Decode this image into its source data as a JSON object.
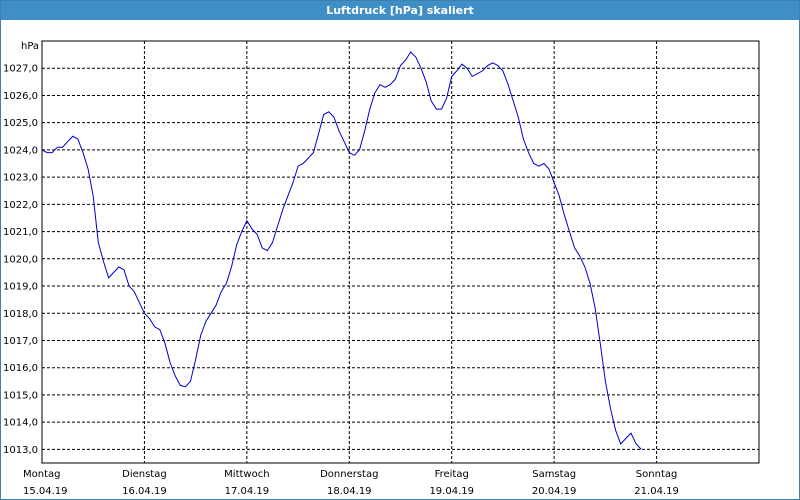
{
  "window": {
    "title": "Luftdruck [hPa] skaliert"
  },
  "chart_data": {
    "type": "line",
    "title": "Luftdruck [hPa] skaliert",
    "ylabel": "hPa",
    "xlabel": "",
    "ylim": [
      1012.5,
      1028.0
    ],
    "xlim": [
      0,
      7
    ],
    "grid": true,
    "y_ticks": [
      "1013,0",
      "1014,0",
      "1015,0",
      "1016,0",
      "1017,0",
      "1018,0",
      "1019,0",
      "1020,0",
      "1021,0",
      "1022,0",
      "1023,0",
      "1024,0",
      "1025,0",
      "1026,0",
      "1027,0"
    ],
    "x_ticks": [
      {
        "day": "Montag",
        "date": "15.04.19"
      },
      {
        "day": "Dienstag",
        "date": "16.04.19"
      },
      {
        "day": "Mittwoch",
        "date": "17.04.19"
      },
      {
        "day": "Donnerstag",
        "date": "18.04.19"
      },
      {
        "day": "Freitag",
        "date": "19.04.19"
      },
      {
        "day": "Samstag",
        "date": "20.04.19"
      },
      {
        "day": "Sonntag",
        "date": "21.04.19"
      }
    ],
    "series": [
      {
        "color": "#0000cc",
        "points": [
          [
            0.0,
            1024.0
          ],
          [
            0.05,
            1023.9
          ],
          [
            0.1,
            1023.9
          ],
          [
            0.15,
            1024.1
          ],
          [
            0.2,
            1024.1
          ],
          [
            0.25,
            1024.3
          ],
          [
            0.3,
            1024.5
          ],
          [
            0.35,
            1024.4
          ],
          [
            0.4,
            1023.9
          ],
          [
            0.45,
            1023.3
          ],
          [
            0.5,
            1022.3
          ],
          [
            0.55,
            1020.6
          ],
          [
            0.6,
            1019.9
          ],
          [
            0.65,
            1019.3
          ],
          [
            0.7,
            1019.5
          ],
          [
            0.75,
            1019.7
          ],
          [
            0.8,
            1019.6
          ],
          [
            0.85,
            1019.0
          ],
          [
            0.9,
            1018.8
          ],
          [
            0.95,
            1018.4
          ],
          [
            1.0,
            1018.0
          ],
          [
            1.05,
            1017.8
          ],
          [
            1.1,
            1017.5
          ],
          [
            1.15,
            1017.4
          ],
          [
            1.2,
            1016.9
          ],
          [
            1.25,
            1016.2
          ],
          [
            1.3,
            1015.7
          ],
          [
            1.35,
            1015.35
          ],
          [
            1.4,
            1015.3
          ],
          [
            1.45,
            1015.5
          ],
          [
            1.5,
            1016.3
          ],
          [
            1.55,
            1017.2
          ],
          [
            1.6,
            1017.7
          ],
          [
            1.65,
            1018.0
          ],
          [
            1.7,
            1018.3
          ],
          [
            1.75,
            1018.8
          ],
          [
            1.8,
            1019.1
          ],
          [
            1.85,
            1019.7
          ],
          [
            1.9,
            1020.5
          ],
          [
            1.95,
            1021.0
          ],
          [
            2.0,
            1021.4
          ],
          [
            2.05,
            1021.1
          ],
          [
            2.1,
            1020.9
          ],
          [
            2.15,
            1020.4
          ],
          [
            2.2,
            1020.3
          ],
          [
            2.25,
            1020.6
          ],
          [
            2.3,
            1021.2
          ],
          [
            2.35,
            1021.8
          ],
          [
            2.4,
            1022.3
          ],
          [
            2.45,
            1022.8
          ],
          [
            2.5,
            1023.4
          ],
          [
            2.55,
            1023.5
          ],
          [
            2.6,
            1023.7
          ],
          [
            2.65,
            1023.9
          ],
          [
            2.7,
            1024.6
          ],
          [
            2.75,
            1025.3
          ],
          [
            2.8,
            1025.4
          ],
          [
            2.85,
            1025.2
          ],
          [
            2.9,
            1024.7
          ],
          [
            2.95,
            1024.3
          ],
          [
            3.0,
            1023.9
          ],
          [
            3.05,
            1023.8
          ],
          [
            3.1,
            1024.0
          ],
          [
            3.15,
            1024.7
          ],
          [
            3.2,
            1025.5
          ],
          [
            3.25,
            1026.1
          ],
          [
            3.3,
            1026.4
          ],
          [
            3.35,
            1026.3
          ],
          [
            3.4,
            1026.4
          ],
          [
            3.45,
            1026.6
          ],
          [
            3.5,
            1027.1
          ],
          [
            3.55,
            1027.3
          ],
          [
            3.6,
            1027.6
          ],
          [
            3.65,
            1027.4
          ],
          [
            3.7,
            1027.0
          ],
          [
            3.75,
            1026.5
          ],
          [
            3.8,
            1025.8
          ],
          [
            3.85,
            1025.5
          ],
          [
            3.9,
            1025.5
          ],
          [
            3.95,
            1025.9
          ],
          [
            4.0,
            1026.7
          ],
          [
            4.05,
            1026.9
          ],
          [
            4.1,
            1027.15
          ],
          [
            4.15,
            1027.0
          ],
          [
            4.2,
            1026.7
          ],
          [
            4.25,
            1026.8
          ],
          [
            4.3,
            1026.9
          ],
          [
            4.35,
            1027.1
          ],
          [
            4.4,
            1027.2
          ],
          [
            4.45,
            1027.1
          ],
          [
            4.5,
            1026.9
          ],
          [
            4.55,
            1026.4
          ],
          [
            4.6,
            1025.8
          ],
          [
            4.65,
            1025.2
          ],
          [
            4.7,
            1024.4
          ],
          [
            4.75,
            1023.9
          ],
          [
            4.8,
            1023.5
          ],
          [
            4.85,
            1023.4
          ],
          [
            4.9,
            1023.5
          ],
          [
            4.95,
            1023.3
          ],
          [
            5.0,
            1022.8
          ],
          [
            5.05,
            1022.3
          ],
          [
            5.1,
            1021.6
          ],
          [
            5.15,
            1021.0
          ],
          [
            5.2,
            1020.4
          ],
          [
            5.25,
            1020.1
          ],
          [
            5.3,
            1019.7
          ],
          [
            5.35,
            1019.1
          ],
          [
            5.4,
            1018.2
          ],
          [
            5.45,
            1016.9
          ],
          [
            5.5,
            1015.5
          ],
          [
            5.55,
            1014.5
          ],
          [
            5.6,
            1013.7
          ],
          [
            5.65,
            1013.2
          ],
          [
            5.7,
            1013.4
          ],
          [
            5.75,
            1013.6
          ],
          [
            5.8,
            1013.2
          ],
          [
            5.85,
            1013.0
          ]
        ]
      }
    ]
  }
}
